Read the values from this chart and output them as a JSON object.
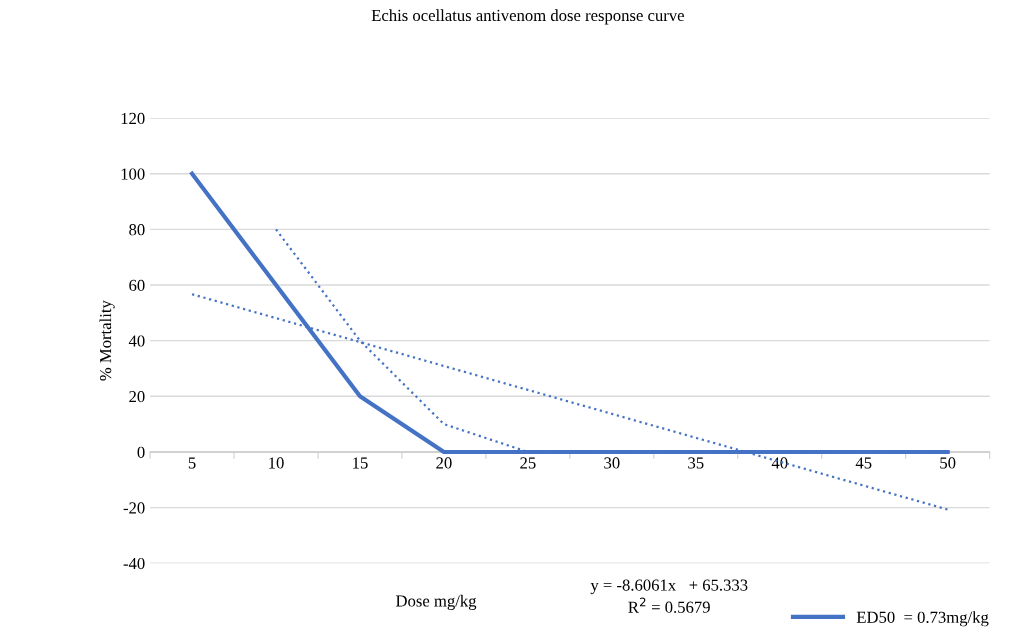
{
  "chart_data": {
    "type": "line",
    "title": "Echis ocellatus antivenom dose response curve",
    "xlabel": "Dose mg/kg",
    "ylabel": "% Mortality",
    "categories": [
      "5",
      "10",
      "15",
      "20",
      "25",
      "30",
      "35",
      "40",
      "45",
      "50"
    ],
    "series": [
      {
        "name": "ED50  = 0.73mg/kg",
        "color": "#4472c4",
        "line_style": "solid",
        "values": [
          100,
          60,
          20,
          0,
          0,
          0,
          0,
          0,
          0,
          0
        ]
      },
      {
        "color": "#4472c4",
        "line_style": "dotted",
        "values": [
          null,
          80,
          40,
          10,
          0,
          0,
          0,
          0,
          0,
          0
        ]
      },
      {
        "color": "#4472c4",
        "line_style": "dotted",
        "values": [
          56.7,
          48.1,
          39.5,
          30.9,
          22.3,
          13.7,
          5.1,
          -3.5,
          -12.1,
          -20.7
        ]
      }
    ],
    "ylim": [
      -40,
      120
    ],
    "yticks": [
      -40,
      -20,
      0,
      20,
      40,
      60,
      80,
      100,
      120
    ],
    "grid": "y",
    "legend": "bottom right",
    "annotations": [
      "y = -8.6061x   + 65.333",
      "R$^{2}$ = 0.5679"
    ]
  }
}
